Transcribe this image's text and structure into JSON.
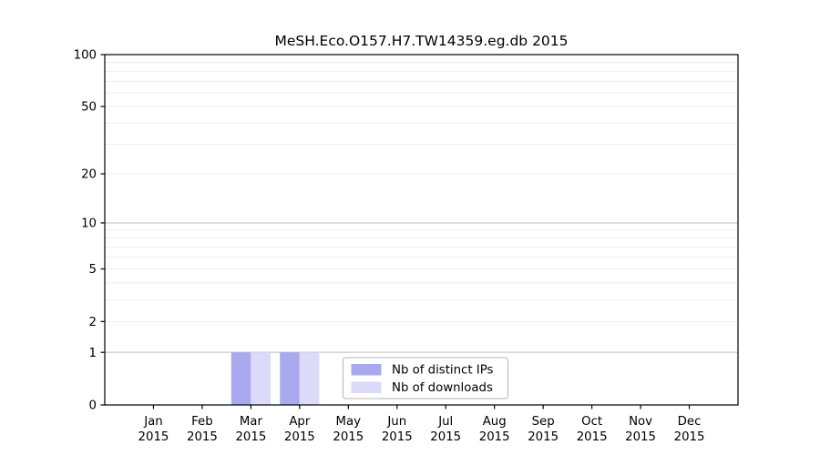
{
  "figure": {
    "title": "MeSH.Eco.O157.H7.TW14359.eg.db 2015"
  },
  "chart_data": {
    "type": "bar",
    "title": "MeSH.Eco.O157.H7.TW14359.eg.db 2015",
    "categories": [
      "Jan",
      "Feb",
      "Mar",
      "Apr",
      "May",
      "Jun",
      "Jul",
      "Aug",
      "Sep",
      "Oct",
      "Nov",
      "Dec"
    ],
    "year": "2015",
    "series": [
      {
        "name": "Nb of distinct IPs",
        "color": "#a9a9ef",
        "values": [
          0,
          0,
          1,
          1,
          0,
          0,
          0,
          0,
          0,
          0,
          0,
          0
        ]
      },
      {
        "name": "Nb of downloads",
        "color": "#dbdbf9",
        "values": [
          0,
          0,
          1,
          1,
          0,
          0,
          0,
          0,
          0,
          0,
          0,
          0
        ]
      }
    ],
    "xlabel": "",
    "ylabel": "",
    "yscale": "log1p",
    "ylim": [
      0,
      100
    ],
    "yticks": [
      0,
      1,
      2,
      5,
      10,
      20,
      50,
      100
    ],
    "grid": true,
    "legend_position": "lower center",
    "colors": {
      "major_gridline": "#bdbdbd",
      "minor_gridline": "#ededed",
      "axis": "#000000"
    }
  }
}
